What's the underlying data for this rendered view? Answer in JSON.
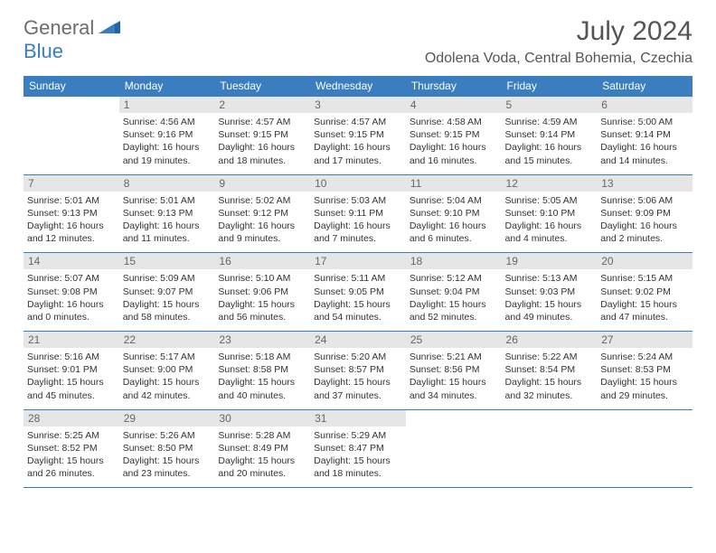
{
  "logo": {
    "text1": "General",
    "text2": "Blue"
  },
  "title": "July 2024",
  "location": "Odolena Voda, Central Bohemia, Czechia",
  "colors": {
    "header_bg": "#3b7ebf",
    "header_text": "#ffffff",
    "daynum_bg": "#e6e6e6",
    "daynum_text": "#666666",
    "border": "#3b7ebf",
    "body_text": "#333333"
  },
  "weekdays": [
    "Sunday",
    "Monday",
    "Tuesday",
    "Wednesday",
    "Thursday",
    "Friday",
    "Saturday"
  ],
  "cells": [
    [
      {
        "day": "",
        "sunrise": "",
        "sunset": "",
        "daylight": ""
      },
      {
        "day": "1",
        "sunrise": "Sunrise: 4:56 AM",
        "sunset": "Sunset: 9:16 PM",
        "daylight": "Daylight: 16 hours and 19 minutes."
      },
      {
        "day": "2",
        "sunrise": "Sunrise: 4:57 AM",
        "sunset": "Sunset: 9:15 PM",
        "daylight": "Daylight: 16 hours and 18 minutes."
      },
      {
        "day": "3",
        "sunrise": "Sunrise: 4:57 AM",
        "sunset": "Sunset: 9:15 PM",
        "daylight": "Daylight: 16 hours and 17 minutes."
      },
      {
        "day": "4",
        "sunrise": "Sunrise: 4:58 AM",
        "sunset": "Sunset: 9:15 PM",
        "daylight": "Daylight: 16 hours and 16 minutes."
      },
      {
        "day": "5",
        "sunrise": "Sunrise: 4:59 AM",
        "sunset": "Sunset: 9:14 PM",
        "daylight": "Daylight: 16 hours and 15 minutes."
      },
      {
        "day": "6",
        "sunrise": "Sunrise: 5:00 AM",
        "sunset": "Sunset: 9:14 PM",
        "daylight": "Daylight: 16 hours and 14 minutes."
      }
    ],
    [
      {
        "day": "7",
        "sunrise": "Sunrise: 5:01 AM",
        "sunset": "Sunset: 9:13 PM",
        "daylight": "Daylight: 16 hours and 12 minutes."
      },
      {
        "day": "8",
        "sunrise": "Sunrise: 5:01 AM",
        "sunset": "Sunset: 9:13 PM",
        "daylight": "Daylight: 16 hours and 11 minutes."
      },
      {
        "day": "9",
        "sunrise": "Sunrise: 5:02 AM",
        "sunset": "Sunset: 9:12 PM",
        "daylight": "Daylight: 16 hours and 9 minutes."
      },
      {
        "day": "10",
        "sunrise": "Sunrise: 5:03 AM",
        "sunset": "Sunset: 9:11 PM",
        "daylight": "Daylight: 16 hours and 7 minutes."
      },
      {
        "day": "11",
        "sunrise": "Sunrise: 5:04 AM",
        "sunset": "Sunset: 9:10 PM",
        "daylight": "Daylight: 16 hours and 6 minutes."
      },
      {
        "day": "12",
        "sunrise": "Sunrise: 5:05 AM",
        "sunset": "Sunset: 9:10 PM",
        "daylight": "Daylight: 16 hours and 4 minutes."
      },
      {
        "day": "13",
        "sunrise": "Sunrise: 5:06 AM",
        "sunset": "Sunset: 9:09 PM",
        "daylight": "Daylight: 16 hours and 2 minutes."
      }
    ],
    [
      {
        "day": "14",
        "sunrise": "Sunrise: 5:07 AM",
        "sunset": "Sunset: 9:08 PM",
        "daylight": "Daylight: 16 hours and 0 minutes."
      },
      {
        "day": "15",
        "sunrise": "Sunrise: 5:09 AM",
        "sunset": "Sunset: 9:07 PM",
        "daylight": "Daylight: 15 hours and 58 minutes."
      },
      {
        "day": "16",
        "sunrise": "Sunrise: 5:10 AM",
        "sunset": "Sunset: 9:06 PM",
        "daylight": "Daylight: 15 hours and 56 minutes."
      },
      {
        "day": "17",
        "sunrise": "Sunrise: 5:11 AM",
        "sunset": "Sunset: 9:05 PM",
        "daylight": "Daylight: 15 hours and 54 minutes."
      },
      {
        "day": "18",
        "sunrise": "Sunrise: 5:12 AM",
        "sunset": "Sunset: 9:04 PM",
        "daylight": "Daylight: 15 hours and 52 minutes."
      },
      {
        "day": "19",
        "sunrise": "Sunrise: 5:13 AM",
        "sunset": "Sunset: 9:03 PM",
        "daylight": "Daylight: 15 hours and 49 minutes."
      },
      {
        "day": "20",
        "sunrise": "Sunrise: 5:15 AM",
        "sunset": "Sunset: 9:02 PM",
        "daylight": "Daylight: 15 hours and 47 minutes."
      }
    ],
    [
      {
        "day": "21",
        "sunrise": "Sunrise: 5:16 AM",
        "sunset": "Sunset: 9:01 PM",
        "daylight": "Daylight: 15 hours and 45 minutes."
      },
      {
        "day": "22",
        "sunrise": "Sunrise: 5:17 AM",
        "sunset": "Sunset: 9:00 PM",
        "daylight": "Daylight: 15 hours and 42 minutes."
      },
      {
        "day": "23",
        "sunrise": "Sunrise: 5:18 AM",
        "sunset": "Sunset: 8:58 PM",
        "daylight": "Daylight: 15 hours and 40 minutes."
      },
      {
        "day": "24",
        "sunrise": "Sunrise: 5:20 AM",
        "sunset": "Sunset: 8:57 PM",
        "daylight": "Daylight: 15 hours and 37 minutes."
      },
      {
        "day": "25",
        "sunrise": "Sunrise: 5:21 AM",
        "sunset": "Sunset: 8:56 PM",
        "daylight": "Daylight: 15 hours and 34 minutes."
      },
      {
        "day": "26",
        "sunrise": "Sunrise: 5:22 AM",
        "sunset": "Sunset: 8:54 PM",
        "daylight": "Daylight: 15 hours and 32 minutes."
      },
      {
        "day": "27",
        "sunrise": "Sunrise: 5:24 AM",
        "sunset": "Sunset: 8:53 PM",
        "daylight": "Daylight: 15 hours and 29 minutes."
      }
    ],
    [
      {
        "day": "28",
        "sunrise": "Sunrise: 5:25 AM",
        "sunset": "Sunset: 8:52 PM",
        "daylight": "Daylight: 15 hours and 26 minutes."
      },
      {
        "day": "29",
        "sunrise": "Sunrise: 5:26 AM",
        "sunset": "Sunset: 8:50 PM",
        "daylight": "Daylight: 15 hours and 23 minutes."
      },
      {
        "day": "30",
        "sunrise": "Sunrise: 5:28 AM",
        "sunset": "Sunset: 8:49 PM",
        "daylight": "Daylight: 15 hours and 20 minutes."
      },
      {
        "day": "31",
        "sunrise": "Sunrise: 5:29 AM",
        "sunset": "Sunset: 8:47 PM",
        "daylight": "Daylight: 15 hours and 18 minutes."
      },
      {
        "day": "",
        "sunrise": "",
        "sunset": "",
        "daylight": ""
      },
      {
        "day": "",
        "sunrise": "",
        "sunset": "",
        "daylight": ""
      },
      {
        "day": "",
        "sunrise": "",
        "sunset": "",
        "daylight": ""
      }
    ]
  ]
}
